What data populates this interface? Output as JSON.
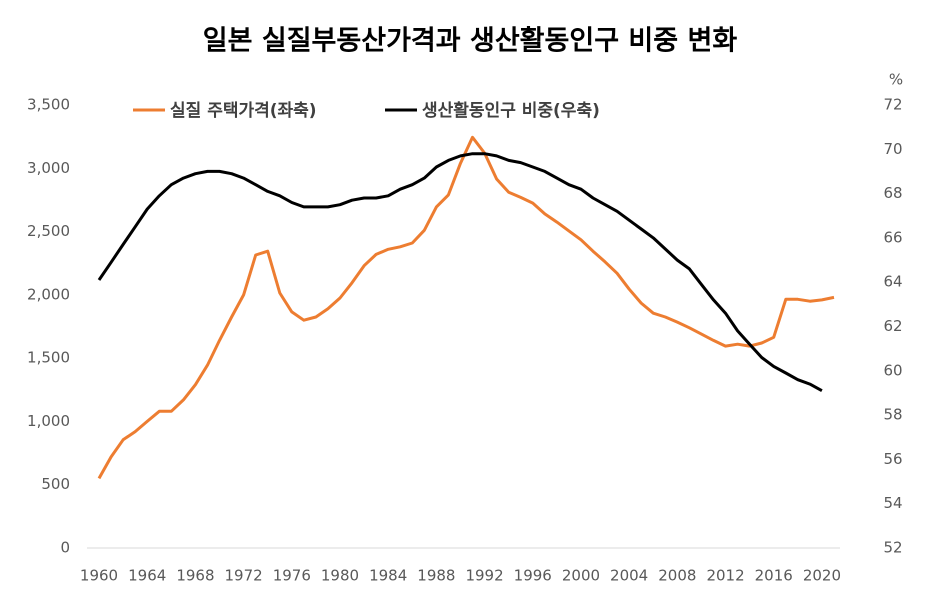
{
  "chart_data": {
    "type": "line",
    "title": "일본 실질부동산가격과 생산활동인구 비중 변화",
    "y2_unit": "%",
    "x": [
      1960,
      1961,
      1962,
      1963,
      1964,
      1965,
      1966,
      1967,
      1968,
      1969,
      1970,
      1971,
      1972,
      1973,
      1974,
      1975,
      1976,
      1977,
      1978,
      1979,
      1980,
      1981,
      1982,
      1983,
      1984,
      1985,
      1986,
      1987,
      1988,
      1989,
      1990,
      1991,
      1992,
      1993,
      1994,
      1995,
      1996,
      1997,
      1998,
      1999,
      2000,
      2001,
      2002,
      2003,
      2004,
      2005,
      2006,
      2007,
      2008,
      2009,
      2010,
      2011,
      2012,
      2013,
      2014,
      2015,
      2016,
      2017,
      2018,
      2019,
      2020,
      2021
    ],
    "xlim": [
      1959.5,
      2021.5
    ],
    "xticks": [
      1960,
      1964,
      1968,
      1972,
      1976,
      1980,
      1984,
      1988,
      1992,
      1996,
      2000,
      2004,
      2008,
      2012,
      2016,
      2020
    ],
    "ylim": [
      0,
      3500
    ],
    "yticks": [
      0,
      500,
      {
        "value": 1000,
        "label": "1,000"
      },
      {
        "value": 1500,
        "label": "1,500"
      },
      {
        "value": 2000,
        "label": "2,000"
      },
      {
        "value": 2500,
        "label": "2,500"
      },
      {
        "value": 3000,
        "label": "3,000"
      },
      {
        "value": 3500,
        "label": "3,500"
      }
    ],
    "y2lim": [
      52,
      72
    ],
    "y2ticks": [
      52,
      54,
      56,
      58,
      60,
      62,
      64,
      66,
      68,
      70,
      72
    ],
    "grid": false,
    "legend": "top",
    "series": [
      {
        "name": "실질 주택가격(좌축)",
        "color": "#ED7D31",
        "axis": "y",
        "values": [
          550,
          720,
          855,
          920,
          1000,
          1080,
          1080,
          1170,
          1290,
          1445,
          1640,
          1825,
          2000,
          2315,
          2345,
          2015,
          1865,
          1800,
          1825,
          1890,
          1975,
          2095,
          2230,
          2320,
          2360,
          2380,
          2410,
          2510,
          2695,
          2790,
          3040,
          3245,
          3120,
          2915,
          2810,
          2770,
          2725,
          2640,
          2575,
          2505,
          2435,
          2345,
          2260,
          2170,
          2045,
          1935,
          1855,
          1825,
          1785,
          1740,
          1690,
          1640,
          1595,
          1610,
          1595,
          1620,
          1665,
          1965,
          1965,
          1950,
          1960,
          1980
        ]
      },
      {
        "name": "생산활동인구 비중(우축)",
        "color": "#000000",
        "axis": "y2",
        "values": [
          64.1,
          64.9,
          65.7,
          66.5,
          67.3,
          67.9,
          68.4,
          68.7,
          68.9,
          69.0,
          69.0,
          68.9,
          68.7,
          68.4,
          68.1,
          67.9,
          67.6,
          67.4,
          67.4,
          67.4,
          67.5,
          67.7,
          67.8,
          67.8,
          67.9,
          68.2,
          68.4,
          68.7,
          69.2,
          69.5,
          69.7,
          69.8,
          69.8,
          69.7,
          69.5,
          69.4,
          69.2,
          69.0,
          68.7,
          68.4,
          68.2,
          67.8,
          67.5,
          67.2,
          66.8,
          66.4,
          66.0,
          65.5,
          65.0,
          64.6,
          63.9,
          63.2,
          62.6,
          61.8,
          61.2,
          60.6,
          60.2,
          59.9,
          59.6,
          59.4,
          59.1,
          null
        ]
      }
    ]
  }
}
